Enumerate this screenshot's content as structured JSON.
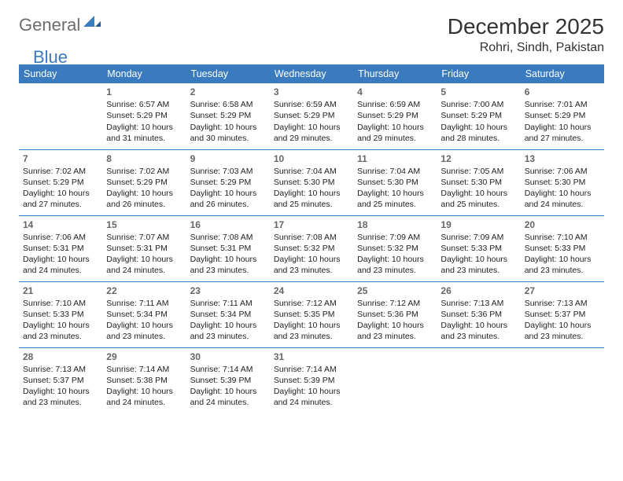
{
  "logo": {
    "general": "General",
    "blue": "Blue"
  },
  "title": "December 2025",
  "location": "Rohri, Sindh, Pakistan",
  "colors": {
    "header_bg": "#3a7bbf",
    "header_fg": "#ffffff",
    "logo_gray": "#6c6c6c",
    "logo_blue": "#3a7bbf",
    "text": "#222222",
    "daynum": "#666666",
    "row_border": "#3a7bbf",
    "background": "#ffffff"
  },
  "daysOfWeek": [
    "Sunday",
    "Monday",
    "Tuesday",
    "Wednesday",
    "Thursday",
    "Friday",
    "Saturday"
  ],
  "weeks": [
    [
      null,
      {
        "n": "1",
        "sr": "6:57 AM",
        "ss": "5:29 PM",
        "dl": "10 hours and 31 minutes."
      },
      {
        "n": "2",
        "sr": "6:58 AM",
        "ss": "5:29 PM",
        "dl": "10 hours and 30 minutes."
      },
      {
        "n": "3",
        "sr": "6:59 AM",
        "ss": "5:29 PM",
        "dl": "10 hours and 29 minutes."
      },
      {
        "n": "4",
        "sr": "6:59 AM",
        "ss": "5:29 PM",
        "dl": "10 hours and 29 minutes."
      },
      {
        "n": "5",
        "sr": "7:00 AM",
        "ss": "5:29 PM",
        "dl": "10 hours and 28 minutes."
      },
      {
        "n": "6",
        "sr": "7:01 AM",
        "ss": "5:29 PM",
        "dl": "10 hours and 27 minutes."
      }
    ],
    [
      {
        "n": "7",
        "sr": "7:02 AM",
        "ss": "5:29 PM",
        "dl": "10 hours and 27 minutes."
      },
      {
        "n": "8",
        "sr": "7:02 AM",
        "ss": "5:29 PM",
        "dl": "10 hours and 26 minutes."
      },
      {
        "n": "9",
        "sr": "7:03 AM",
        "ss": "5:29 PM",
        "dl": "10 hours and 26 minutes."
      },
      {
        "n": "10",
        "sr": "7:04 AM",
        "ss": "5:30 PM",
        "dl": "10 hours and 25 minutes."
      },
      {
        "n": "11",
        "sr": "7:04 AM",
        "ss": "5:30 PM",
        "dl": "10 hours and 25 minutes."
      },
      {
        "n": "12",
        "sr": "7:05 AM",
        "ss": "5:30 PM",
        "dl": "10 hours and 25 minutes."
      },
      {
        "n": "13",
        "sr": "7:06 AM",
        "ss": "5:30 PM",
        "dl": "10 hours and 24 minutes."
      }
    ],
    [
      {
        "n": "14",
        "sr": "7:06 AM",
        "ss": "5:31 PM",
        "dl": "10 hours and 24 minutes."
      },
      {
        "n": "15",
        "sr": "7:07 AM",
        "ss": "5:31 PM",
        "dl": "10 hours and 24 minutes."
      },
      {
        "n": "16",
        "sr": "7:08 AM",
        "ss": "5:31 PM",
        "dl": "10 hours and 23 minutes."
      },
      {
        "n": "17",
        "sr": "7:08 AM",
        "ss": "5:32 PM",
        "dl": "10 hours and 23 minutes."
      },
      {
        "n": "18",
        "sr": "7:09 AM",
        "ss": "5:32 PM",
        "dl": "10 hours and 23 minutes."
      },
      {
        "n": "19",
        "sr": "7:09 AM",
        "ss": "5:33 PM",
        "dl": "10 hours and 23 minutes."
      },
      {
        "n": "20",
        "sr": "7:10 AM",
        "ss": "5:33 PM",
        "dl": "10 hours and 23 minutes."
      }
    ],
    [
      {
        "n": "21",
        "sr": "7:10 AM",
        "ss": "5:33 PM",
        "dl": "10 hours and 23 minutes."
      },
      {
        "n": "22",
        "sr": "7:11 AM",
        "ss": "5:34 PM",
        "dl": "10 hours and 23 minutes."
      },
      {
        "n": "23",
        "sr": "7:11 AM",
        "ss": "5:34 PM",
        "dl": "10 hours and 23 minutes."
      },
      {
        "n": "24",
        "sr": "7:12 AM",
        "ss": "5:35 PM",
        "dl": "10 hours and 23 minutes."
      },
      {
        "n": "25",
        "sr": "7:12 AM",
        "ss": "5:36 PM",
        "dl": "10 hours and 23 minutes."
      },
      {
        "n": "26",
        "sr": "7:13 AM",
        "ss": "5:36 PM",
        "dl": "10 hours and 23 minutes."
      },
      {
        "n": "27",
        "sr": "7:13 AM",
        "ss": "5:37 PM",
        "dl": "10 hours and 23 minutes."
      }
    ],
    [
      {
        "n": "28",
        "sr": "7:13 AM",
        "ss": "5:37 PM",
        "dl": "10 hours and 23 minutes."
      },
      {
        "n": "29",
        "sr": "7:14 AM",
        "ss": "5:38 PM",
        "dl": "10 hours and 24 minutes."
      },
      {
        "n": "30",
        "sr": "7:14 AM",
        "ss": "5:39 PM",
        "dl": "10 hours and 24 minutes."
      },
      {
        "n": "31",
        "sr": "7:14 AM",
        "ss": "5:39 PM",
        "dl": "10 hours and 24 minutes."
      },
      null,
      null,
      null
    ]
  ],
  "labels": {
    "sunrise": "Sunrise:",
    "sunset": "Sunset:",
    "daylight": "Daylight:"
  }
}
